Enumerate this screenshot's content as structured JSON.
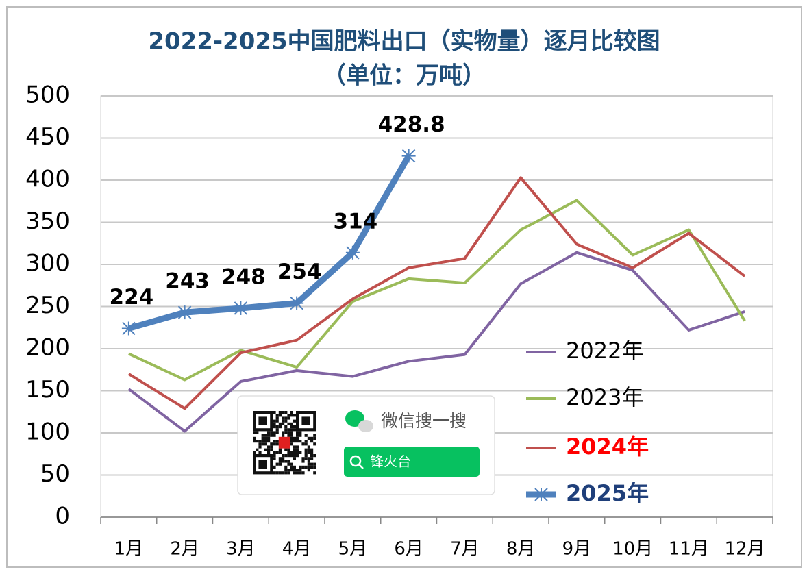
{
  "chart_data": {
    "type": "line",
    "title": "2022-2025中国肥料出口（实物量）逐月比较图",
    "subtitle": "（单位：万吨）",
    "categories": [
      "1月",
      "2月",
      "3月",
      "4月",
      "5月",
      "6月",
      "7月",
      "8月",
      "9月",
      "10月",
      "11月",
      "12月"
    ],
    "series": [
      {
        "name": "2022年",
        "color": "#8064a2",
        "values": [
          152,
          102,
          161,
          174,
          167,
          185,
          193,
          277,
          314,
          293,
          222,
          244
        ]
      },
      {
        "name": "2023年",
        "color": "#9bbb59",
        "values": [
          194,
          163,
          198,
          178,
          256,
          283,
          278,
          341,
          376,
          311,
          341,
          233
        ]
      },
      {
        "name": "2024年",
        "color": "#c0504d",
        "values": [
          170,
          129,
          195,
          210,
          259,
          296,
          307,
          403,
          324,
          296,
          337,
          286
        ]
      },
      {
        "name": "2025年",
        "color": "#4f81bd",
        "values": [
          224,
          243,
          248,
          254,
          314,
          428.8,
          null,
          null,
          null,
          null,
          null,
          null
        ]
      }
    ],
    "labeled_series": 3,
    "ylim": [
      0,
      500
    ],
    "yticks": [
      0,
      50,
      100,
      150,
      200,
      250,
      300,
      350,
      400,
      450,
      500
    ],
    "grid": true
  },
  "overlay": {
    "label": "微信搜一搜",
    "search_text": "锋火台"
  }
}
